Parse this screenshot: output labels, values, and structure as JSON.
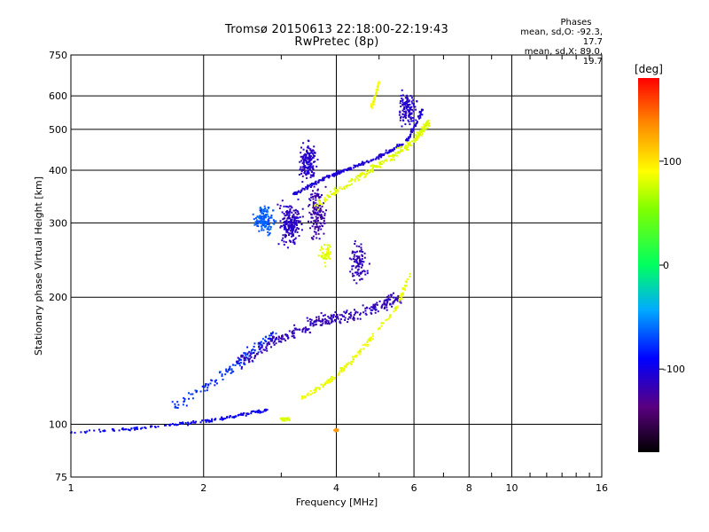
{
  "header": {
    "title": "Tromsø 20150613 22:18:00-22:19:43",
    "subtitle": "RwPretec (8p)"
  },
  "stats": {
    "heading": "Phases",
    "o_line": "mean, sd,O: -92.3, 17.7",
    "x_line": "mean, sd,X:  89.0, 19.7"
  },
  "colorbar": {
    "unit": "[deg]",
    "ticks": [
      "100",
      "0",
      "-100"
    ],
    "tick_values": [
      100,
      0,
      -100
    ],
    "range": [
      -180,
      180
    ]
  },
  "chart_data": {
    "type": "scatter",
    "xlabel": "Frequency [MHz]",
    "ylabel": "Stationary phase Virtual Height [km]",
    "xscale": "log",
    "yscale": "log",
    "xlim": [
      1,
      16
    ],
    "ylim": [
      75,
      750
    ],
    "xticks": [
      1,
      2,
      4,
      6,
      8,
      10,
      16
    ],
    "xtick_labels": [
      "1",
      "2",
      "4",
      "6",
      "8",
      "10",
      "16"
    ],
    "yticks": [
      75,
      100,
      200,
      300,
      400,
      500,
      600,
      750
    ],
    "ytick_labels": [
      "75",
      "100",
      "200",
      "300",
      "400",
      "500",
      "600",
      "750"
    ],
    "grid": true,
    "colorbar_range": [
      -180,
      180
    ],
    "clusters": [
      {
        "kind": "curve",
        "pts": [
          [
            1,
            96
          ],
          [
            1.3,
            97
          ],
          [
            1.6,
            99
          ],
          [
            1.9,
            101
          ],
          [
            2.2,
            103
          ],
          [
            2.5,
            106
          ],
          [
            2.8,
            108
          ]
        ],
        "phase": -95,
        "n": 160,
        "sx": 0.006,
        "sy": 0.012
      },
      {
        "kind": "curve",
        "pts": [
          [
            1.7,
            110
          ],
          [
            2.1,
            125
          ],
          [
            2.5,
            145
          ],
          [
            2.9,
            165
          ]
        ],
        "phase": -78,
        "n": 140,
        "sx": 0.03,
        "sy": 0.05
      },
      {
        "kind": "blob",
        "x": 2.75,
        "y": 305,
        "rx": 0.035,
        "ry": 0.05,
        "phase": -65,
        "n": 140
      },
      {
        "kind": "blob",
        "x": 3.15,
        "y": 300,
        "rx": 0.04,
        "ry": 0.08,
        "phase": -112,
        "n": 200
      },
      {
        "kind": "blob",
        "x": 3.45,
        "y": 420,
        "rx": 0.03,
        "ry": 0.07,
        "phase": -110,
        "n": 160
      },
      {
        "kind": "blob",
        "x": 3.6,
        "y": 320,
        "rx": 0.03,
        "ry": 0.1,
        "phase": -120,
        "n": 150
      },
      {
        "kind": "curve",
        "pts": [
          [
            3.2,
            350
          ],
          [
            3.7,
            380
          ],
          [
            4.2,
            400
          ],
          [
            5,
            430
          ],
          [
            5.8,
            470
          ],
          [
            6.3,
            560
          ]
        ],
        "phase": -105,
        "n": 260,
        "sx": 0.01,
        "sy": 0.015
      },
      {
        "kind": "curve",
        "pts": [
          [
            3.6,
            330
          ],
          [
            4.4,
            380
          ],
          [
            5.2,
            420
          ],
          [
            6.0,
            470
          ],
          [
            6.5,
            520
          ]
        ],
        "phase": 82,
        "n": 240,
        "sx": 0.012,
        "sy": 0.03
      },
      {
        "kind": "blob",
        "x": 5.8,
        "y": 560,
        "rx": 0.03,
        "ry": 0.06,
        "phase": -110,
        "n": 120
      },
      {
        "kind": "curve",
        "pts": [
          [
            4.8,
            560
          ],
          [
            4.95,
            620
          ],
          [
            5.0,
            650
          ]
        ],
        "phase": 88,
        "n": 40,
        "sx": 0.008,
        "sy": 0.015
      },
      {
        "kind": "curve",
        "pts": [
          [
            2.4,
            140
          ],
          [
            3.0,
            160
          ],
          [
            3.6,
            175
          ],
          [
            4.2,
            180
          ],
          [
            5.0,
            190
          ],
          [
            5.6,
            200
          ]
        ],
        "phase": -115,
        "n": 320,
        "sx": 0.035,
        "sy": 0.05
      },
      {
        "kind": "curve",
        "pts": [
          [
            3.3,
            115
          ],
          [
            3.8,
            125
          ],
          [
            4.3,
            140
          ],
          [
            4.8,
            160
          ],
          [
            5.5,
            190
          ],
          [
            5.9,
            230
          ]
        ],
        "phase": 85,
        "n": 170,
        "sx": 0.01,
        "sy": 0.02
      },
      {
        "kind": "blob",
        "x": 3.8,
        "y": 255,
        "rx": 0.025,
        "ry": 0.04,
        "phase": 82,
        "n": 50
      },
      {
        "kind": "blob",
        "x": 4.5,
        "y": 240,
        "rx": 0.03,
        "ry": 0.07,
        "phase": -115,
        "n": 90
      },
      {
        "kind": "blob",
        "x": 3.05,
        "y": 103,
        "rx": 0.02,
        "ry": 0.008,
        "phase": 80,
        "n": 25
      },
      {
        "kind": "blob",
        "x": 4.0,
        "y": 97,
        "rx": 0.008,
        "ry": 0.006,
        "phase": 130,
        "n": 20
      }
    ]
  }
}
